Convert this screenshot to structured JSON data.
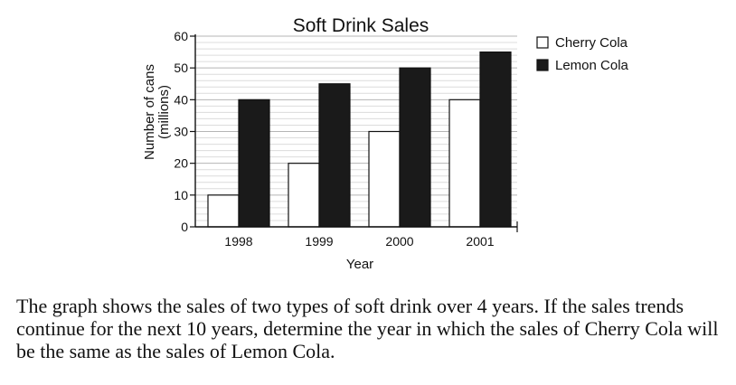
{
  "chart_data": {
    "type": "bar",
    "title": "Soft Drink Sales",
    "xlabel": "Year",
    "ylabel": [
      "Number of cans",
      "(millions)"
    ],
    "categories": [
      "1998",
      "1999",
      "2000",
      "2001"
    ],
    "series": [
      {
        "name": "Cherry Cola",
        "values": [
          10,
          20,
          30,
          40
        ],
        "color": "#ffffff"
      },
      {
        "name": "Lemon Cola",
        "values": [
          40,
          45,
          50,
          55
        ],
        "color": "#1a1a1a"
      }
    ],
    "ylim": [
      0,
      60
    ],
    "yticks": [
      0,
      10,
      20,
      30,
      40,
      50,
      60
    ],
    "grid": true,
    "legend_position": "top-right"
  },
  "question": "The graph shows the sales of two types of soft drink over 4 years. If the sales trends continue for the next 10 years, determine the year in which the sales of Cherry Cola will be the same as the sales of Lemon Cola."
}
